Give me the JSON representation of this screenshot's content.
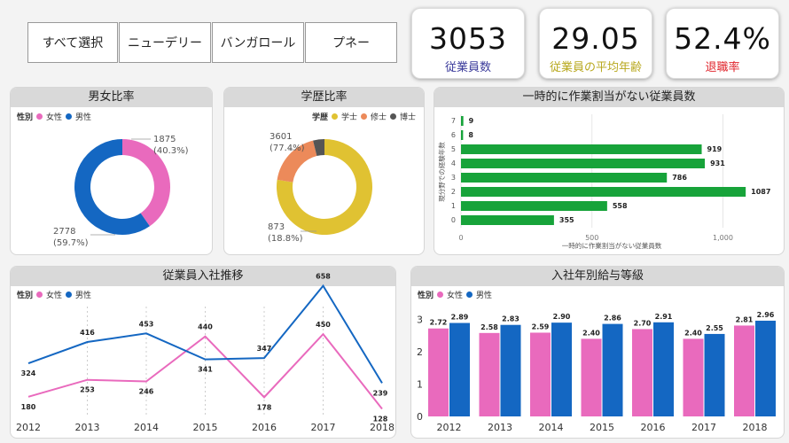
{
  "filters": [
    "すべて選択",
    "ニューデリー",
    "バンガロール",
    "プネー"
  ],
  "kpis": [
    {
      "value": "3053",
      "label": "従業員数",
      "color": "#3b3b9b"
    },
    {
      "value": "29.05",
      "label": "従業員の平均年齢",
      "color": "#b8a81e"
    },
    {
      "value": "52.4%",
      "label": "退職率",
      "color": "#e0242c"
    }
  ],
  "gender": {
    "title": "男女比率",
    "legend_title": "性別",
    "legend": [
      "女性",
      "男性"
    ],
    "colors": [
      "#e96abd",
      "#1467c2"
    ],
    "chart_data": {
      "type": "pie",
      "categories": [
        "女性",
        "男性"
      ],
      "values": [
        1875,
        2778
      ],
      "labels": [
        [
          "1875",
          "(40.3%)"
        ],
        [
          "2778",
          "(59.7%)"
        ]
      ]
    }
  },
  "education": {
    "title": "学歴比率",
    "legend_title": "学歴",
    "legend": [
      "学士",
      "修士",
      "博士"
    ],
    "colors": [
      "#e0c232",
      "#ec8a5a",
      "#555555"
    ],
    "chart_data": {
      "type": "pie",
      "categories": [
        "学士",
        "修士",
        "博士"
      ],
      "values": [
        3601,
        873,
        179
      ],
      "labels": [
        [
          "3601",
          "(77.4%)"
        ],
        [
          "873",
          "(18.8%)"
        ]
      ]
    }
  },
  "bench": {
    "title": "一時的に作業割当がない従業員数",
    "xlabel": "一時的に作業割当がない従業員数",
    "ylabel": "現分野での経験年数",
    "xticks": [
      "0",
      "500",
      "1,000"
    ],
    "color": "#17a33a",
    "chart_data": {
      "type": "bar",
      "orientation": "horizontal",
      "categories": [
        "7",
        "6",
        "5",
        "4",
        "3",
        "2",
        "1",
        "0"
      ],
      "values": [
        9,
        8,
        919,
        931,
        786,
        1087,
        558,
        355
      ],
      "xlim": [
        0,
        1100
      ]
    }
  },
  "hires": {
    "title": "従業員入社推移",
    "legend_title": "性別",
    "legend": [
      "女性",
      "男性"
    ],
    "colors": [
      "#e96abd",
      "#1467c2"
    ],
    "chart_data": {
      "type": "line",
      "x": [
        "2012",
        "2013",
        "2014",
        "2015",
        "2016",
        "2017",
        "2018"
      ],
      "series": [
        {
          "name": "女性",
          "values": [
            180,
            253,
            246,
            440,
            178,
            450,
            128
          ]
        },
        {
          "name": "男性",
          "values": [
            324,
            416,
            453,
            341,
            347,
            658,
            239
          ]
        }
      ],
      "ylim": [
        100,
        700
      ]
    }
  },
  "salary": {
    "title": "入社年別給与等級",
    "legend_title": "性別",
    "legend": [
      "女性",
      "男性"
    ],
    "colors": [
      "#e96abd",
      "#1467c2"
    ],
    "yticks": [
      "0",
      "1",
      "2",
      "3"
    ],
    "chart_data": {
      "type": "bar",
      "categories": [
        "2012",
        "2013",
        "2014",
        "2015",
        "2016",
        "2017",
        "2018"
      ],
      "series": [
        {
          "name": "女性",
          "values": [
            2.72,
            2.58,
            2.59,
            2.4,
            2.7,
            2.4,
            2.81
          ],
          "labels": [
            "2.72",
            "2.58",
            "2.59",
            "2.40",
            "2.70",
            "2.40",
            "2.81"
          ]
        },
        {
          "name": "男性",
          "values": [
            2.89,
            2.83,
            2.9,
            2.86,
            2.91,
            2.55,
            2.96
          ],
          "labels": [
            "2.89",
            "2.83",
            "2.90",
            "2.86",
            "2.91",
            "2.55",
            "2.96"
          ]
        }
      ],
      "ylim": [
        0,
        3.2
      ]
    }
  }
}
